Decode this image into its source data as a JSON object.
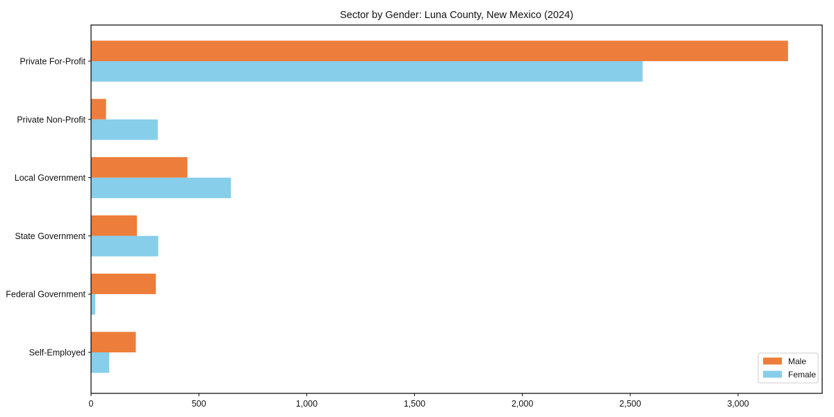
{
  "chart_data": {
    "type": "bar",
    "orientation": "horizontal",
    "title": "Sector by Gender: Luna County, New Mexico (2024)",
    "categories": [
      "Private For-Profit",
      "Private Non-Profit",
      "Local Government",
      "State Government",
      "Federal Government",
      "Self-Employed"
    ],
    "series": [
      {
        "name": "Male",
        "color": "#ED7D3B",
        "values": [
          3230,
          68,
          445,
          211,
          299,
          206
        ]
      },
      {
        "name": "Female",
        "color": "#87CEEB",
        "values": [
          2556,
          308,
          647,
          310,
          18,
          83
        ]
      }
    ],
    "xlabel": "",
    "ylabel": "",
    "xlim": [
      0,
      3390
    ],
    "xticks": [
      0,
      500,
      1000,
      1500,
      2000,
      2500,
      3000
    ],
    "xtick_labels": [
      "0",
      "500",
      "1,000",
      "1,500",
      "2,000",
      "2,500",
      "3,000"
    ],
    "grid": false,
    "legend": {
      "position": "lower-right",
      "entries": [
        "Male",
        "Female"
      ]
    }
  },
  "colors": {
    "axis": "#000000",
    "text": "#111111",
    "legend_border": "#cccccc",
    "background": "#ffffff"
  }
}
